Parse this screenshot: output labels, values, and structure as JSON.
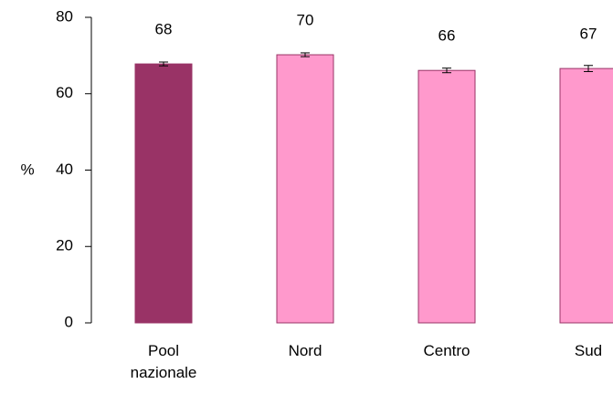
{
  "chart_data": {
    "type": "bar",
    "y_label": "%",
    "categories": [
      "Pool nazionale",
      "Nord",
      "Centro",
      "Sud"
    ],
    "values": [
      67.8,
      70.2,
      66.1,
      66.6
    ],
    "value_labels": [
      "68",
      "70",
      "66",
      "67"
    ],
    "errors": [
      0.5,
      0.5,
      0.6,
      0.8
    ],
    "colors": [
      "#993366",
      "#ff99cc",
      "#ff99cc",
      "#ff99cc"
    ],
    "ylim": [
      0,
      80
    ],
    "yticks": [
      0,
      20,
      40,
      60,
      80
    ]
  }
}
